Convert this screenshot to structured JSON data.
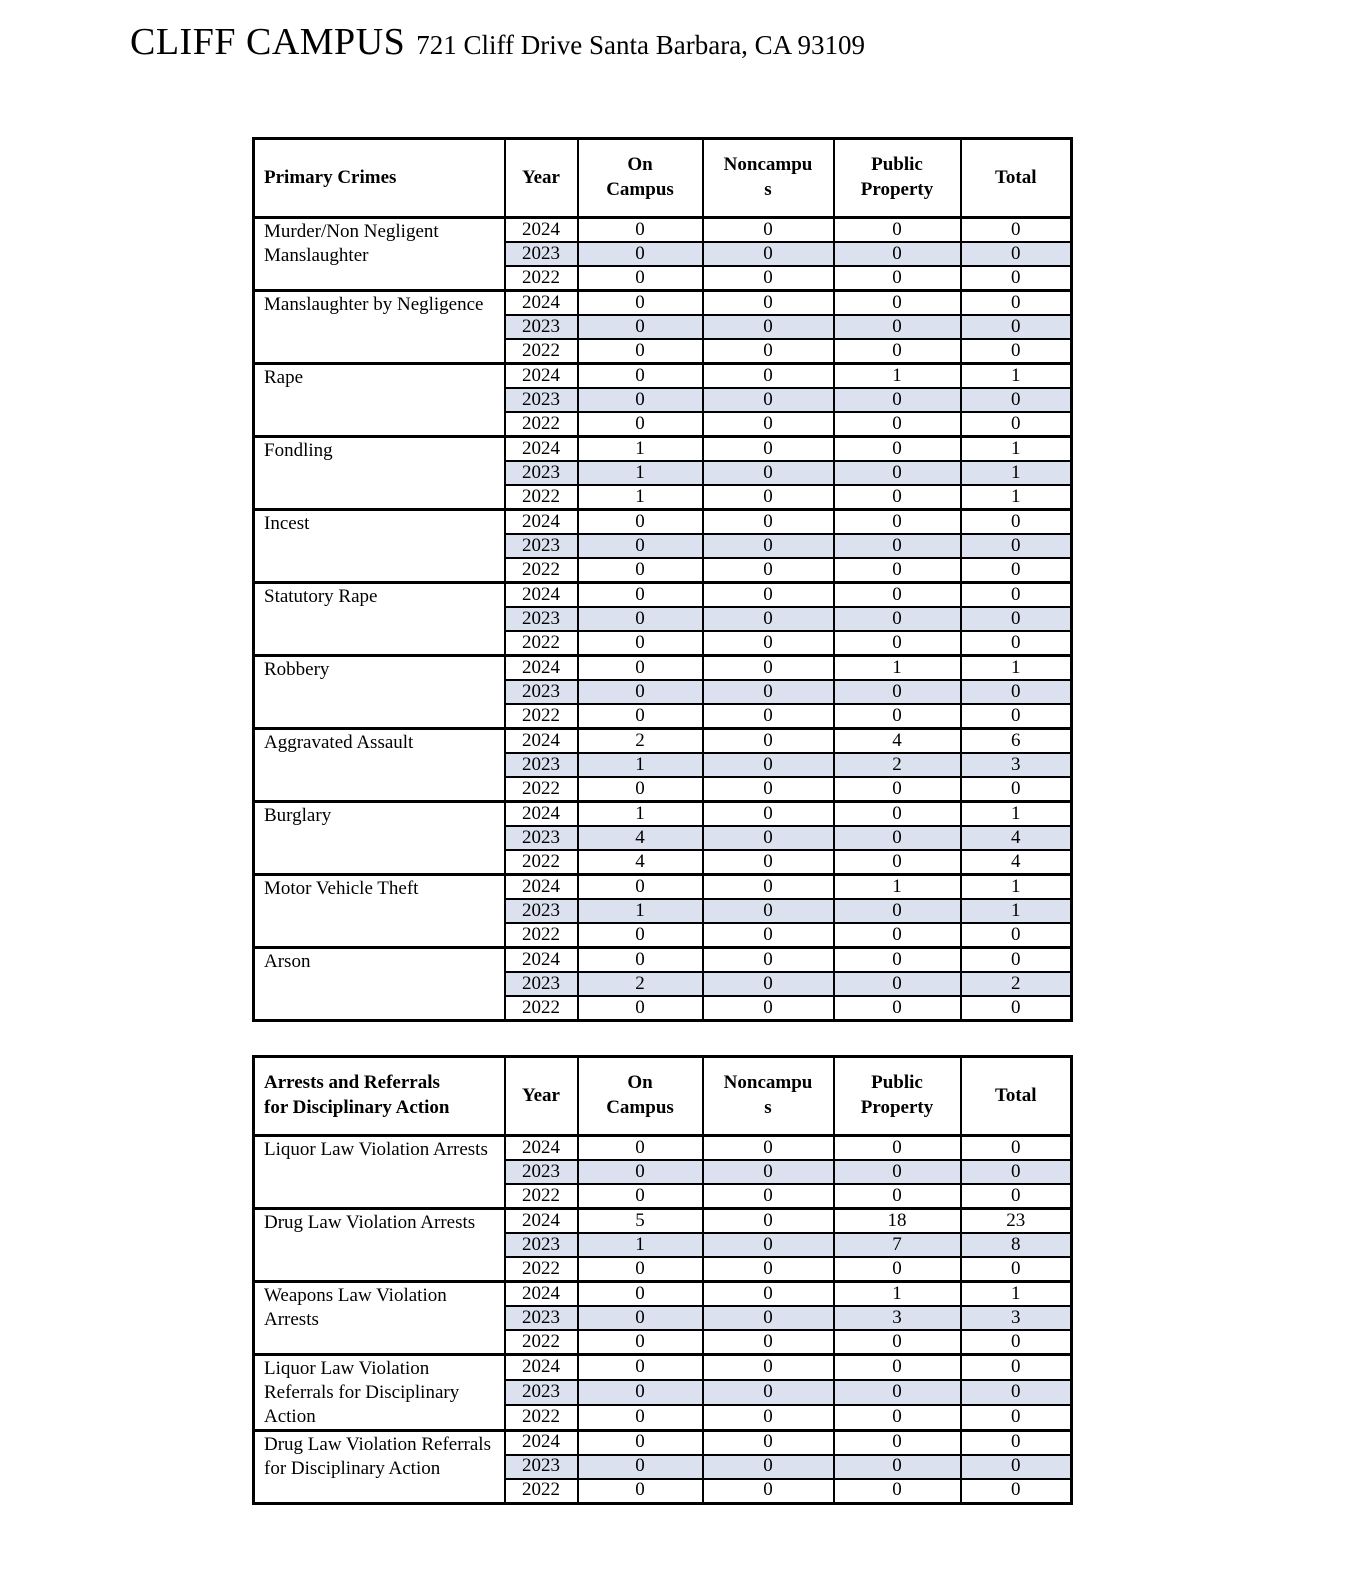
{
  "header": {
    "campus_name": "CLIFF CAMPUS",
    "campus_address": "721 Cliff Drive Santa Barbara, CA 93109"
  },
  "colors": {
    "shaded_row": "#dbe1ee",
    "border": "#000000",
    "text": "#000000",
    "page_background": "#ffffff"
  },
  "tables": [
    {
      "name": "primary-crimes",
      "columns": {
        "category": "Primary Crimes",
        "year": "Year",
        "locations": [
          "On\nCampus",
          "Noncampu\ns",
          "Public\nProperty",
          "Total"
        ]
      },
      "groups": [
        {
          "category": "Murder/Non Negligent Manslaughter",
          "rows": [
            {
              "year": "2024",
              "values": [
                "0",
                "0",
                "0",
                "0"
              ]
            },
            {
              "year": "2023",
              "values": [
                "0",
                "0",
                "0",
                "0"
              ]
            },
            {
              "year": "2022",
              "values": [
                "0",
                "0",
                "0",
                "0"
              ]
            }
          ]
        },
        {
          "category": "Manslaughter by Negligence",
          "rows": [
            {
              "year": "2024",
              "values": [
                "0",
                "0",
                "0",
                "0"
              ]
            },
            {
              "year": "2023",
              "values": [
                "0",
                "0",
                "0",
                "0"
              ]
            },
            {
              "year": "2022",
              "values": [
                "0",
                "0",
                "0",
                "0"
              ]
            }
          ]
        },
        {
          "category": "Rape",
          "rows": [
            {
              "year": "2024",
              "values": [
                "0",
                "0",
                "1",
                "1"
              ]
            },
            {
              "year": "2023",
              "values": [
                "0",
                "0",
                "0",
                "0"
              ]
            },
            {
              "year": "2022",
              "values": [
                "0",
                "0",
                "0",
                "0"
              ]
            }
          ]
        },
        {
          "category": "Fondling",
          "rows": [
            {
              "year": "2024",
              "values": [
                "1",
                "0",
                "0",
                "1"
              ]
            },
            {
              "year": "2023",
              "values": [
                "1",
                "0",
                "0",
                "1"
              ]
            },
            {
              "year": "2022",
              "values": [
                "1",
                "0",
                "0",
                "1"
              ]
            }
          ]
        },
        {
          "category": "Incest",
          "rows": [
            {
              "year": "2024",
              "values": [
                "0",
                "0",
                "0",
                "0"
              ]
            },
            {
              "year": "2023",
              "values": [
                "0",
                "0",
                "0",
                "0"
              ]
            },
            {
              "year": "2022",
              "values": [
                "0",
                "0",
                "0",
                "0"
              ]
            }
          ]
        },
        {
          "category": "Statutory Rape",
          "rows": [
            {
              "year": "2024",
              "values": [
                "0",
                "0",
                "0",
                "0"
              ]
            },
            {
              "year": "2023",
              "values": [
                "0",
                "0",
                "0",
                "0"
              ]
            },
            {
              "year": "2022",
              "values": [
                "0",
                "0",
                "0",
                "0"
              ]
            }
          ]
        },
        {
          "category": "Robbery",
          "rows": [
            {
              "year": "2024",
              "values": [
                "0",
                "0",
                "1",
                "1"
              ]
            },
            {
              "year": "2023",
              "values": [
                "0",
                "0",
                "0",
                "0"
              ]
            },
            {
              "year": "2022",
              "values": [
                "0",
                "0",
                "0",
                "0"
              ]
            }
          ]
        },
        {
          "category": "Aggravated Assault",
          "rows": [
            {
              "year": "2024",
              "values": [
                "2",
                "0",
                "4",
                "6"
              ]
            },
            {
              "year": "2023",
              "values": [
                "1",
                "0",
                "2",
                "3"
              ]
            },
            {
              "year": "2022",
              "values": [
                "0",
                "0",
                "0",
                "0"
              ]
            }
          ]
        },
        {
          "category": "Burglary",
          "rows": [
            {
              "year": "2024",
              "values": [
                "1",
                "0",
                "0",
                "1"
              ]
            },
            {
              "year": "2023",
              "values": [
                "4",
                "0",
                "0",
                "4"
              ]
            },
            {
              "year": "2022",
              "values": [
                "4",
                "0",
                "0",
                "4"
              ]
            }
          ]
        },
        {
          "category": "Motor Vehicle Theft",
          "rows": [
            {
              "year": "2024",
              "values": [
                "0",
                "0",
                "1",
                "1"
              ]
            },
            {
              "year": "2023",
              "values": [
                "1",
                "0",
                "0",
                "1"
              ]
            },
            {
              "year": "2022",
              "values": [
                "0",
                "0",
                "0",
                "0"
              ]
            }
          ]
        },
        {
          "category": "Arson",
          "rows": [
            {
              "year": "2024",
              "values": [
                "0",
                "0",
                "0",
                "0"
              ]
            },
            {
              "year": "2023",
              "values": [
                "2",
                "0",
                "0",
                "2"
              ]
            },
            {
              "year": "2022",
              "values": [
                "0",
                "0",
                "0",
                "0"
              ]
            }
          ]
        }
      ]
    },
    {
      "name": "arrests-referrals",
      "columns": {
        "category": "Arrests and Referrals\nfor Disciplinary Action",
        "year": "Year",
        "locations": [
          "On\nCampus",
          "Noncampu\ns",
          "Public\nProperty",
          "Total"
        ]
      },
      "groups": [
        {
          "category": "Liquor Law Violation Arrests",
          "rows": [
            {
              "year": "2024",
              "values": [
                "0",
                "0",
                "0",
                "0"
              ]
            },
            {
              "year": "2023",
              "values": [
                "0",
                "0",
                "0",
                "0"
              ]
            },
            {
              "year": "2022",
              "values": [
                "0",
                "0",
                "0",
                "0"
              ]
            }
          ]
        },
        {
          "category": "Drug Law Violation Arrests",
          "rows": [
            {
              "year": "2024",
              "values": [
                "5",
                "0",
                "18",
                "23"
              ]
            },
            {
              "year": "2023",
              "values": [
                "1",
                "0",
                "7",
                "8"
              ]
            },
            {
              "year": "2022",
              "values": [
                "0",
                "0",
                "0",
                "0"
              ]
            }
          ]
        },
        {
          "category": "Weapons Law Violation Arrests",
          "rows": [
            {
              "year": "2024",
              "values": [
                "0",
                "0",
                "1",
                "1"
              ]
            },
            {
              "year": "2023",
              "values": [
                "0",
                "0",
                "3",
                "3"
              ]
            },
            {
              "year": "2022",
              "values": [
                "0",
                "0",
                "0",
                "0"
              ]
            }
          ]
        },
        {
          "category": "Liquor Law Violation Referrals for Disciplinary Action",
          "rows": [
            {
              "year": "2024",
              "values": [
                "0",
                "0",
                "0",
                "0"
              ]
            },
            {
              "year": "2023",
              "values": [
                "0",
                "0",
                "0",
                "0"
              ]
            },
            {
              "year": "2022",
              "values": [
                "0",
                "0",
                "0",
                "0"
              ]
            }
          ]
        },
        {
          "category": "Drug Law Violation Referrals for Disciplinary Action",
          "rows": [
            {
              "year": "2024",
              "values": [
                "0",
                "0",
                "0",
                "0"
              ]
            },
            {
              "year": "2023",
              "values": [
                "0",
                "0",
                "0",
                "0"
              ]
            },
            {
              "year": "2022",
              "values": [
                "0",
                "0",
                "0",
                "0"
              ]
            }
          ]
        }
      ]
    }
  ]
}
